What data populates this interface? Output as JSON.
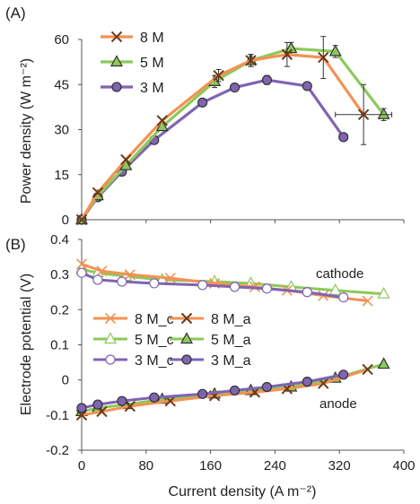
{
  "colors": {
    "8M": "#f39254",
    "5M": "#8cc95a",
    "3M": "#7f64b3",
    "marker8M": "#6b3a1b",
    "axis": "#555555",
    "text": "#222222"
  },
  "chart_data": [
    {
      "type": "line",
      "panel_label": "(A)",
      "ylabel": "Power density (W m⁻²)",
      "xlim": [
        0,
        400
      ],
      "ylim": [
        0,
        60
      ],
      "yticks": [
        "0",
        "15",
        "30",
        "45",
        "60"
      ],
      "legend": [
        "8 M",
        "5 M",
        "3 M"
      ],
      "legend_position": "top-left",
      "grid": false,
      "series": [
        {
          "name": "8 M",
          "marker": "x",
          "x": [
            0,
            20,
            55,
            100,
            170,
            210,
            255,
            300,
            350
          ],
          "y": [
            0,
            9,
            20,
            33,
            48,
            53,
            55,
            54,
            35
          ],
          "err_y": [
            0,
            0,
            0,
            0,
            2,
            2,
            4,
            7,
            10
          ],
          "err_x": [
            0,
            0,
            0,
            0,
            0,
            0,
            0,
            0,
            35
          ]
        },
        {
          "name": "5 M",
          "marker": "triangle",
          "x": [
            0,
            20,
            55,
            100,
            165,
            210,
            260,
            315,
            375
          ],
          "y": [
            0,
            8,
            18,
            31,
            46,
            53,
            57,
            56,
            35
          ],
          "err_y": [
            0,
            0,
            0,
            0,
            2,
            2,
            2,
            2,
            2
          ],
          "err_x": [
            0,
            0,
            0,
            0,
            0,
            0,
            0,
            0,
            0
          ]
        },
        {
          "name": "3 M",
          "marker": "circle",
          "x": [
            0,
            20,
            50,
            90,
            150,
            190,
            230,
            280,
            325
          ],
          "y": [
            0,
            7.5,
            16,
            26.5,
            39,
            44,
            46.5,
            44.5,
            27.5
          ],
          "err_y": [
            0,
            0,
            0,
            0,
            0,
            0,
            1.5,
            1,
            1
          ],
          "err_x": [
            0,
            0,
            0,
            0,
            0,
            0,
            0,
            0,
            5
          ]
        }
      ]
    },
    {
      "type": "line",
      "panel_label": "(B)",
      "xlabel": "Current density (A m⁻²)",
      "ylabel": "Electrode potential (V)",
      "xlim": [
        0,
        400
      ],
      "ylim": [
        -0.2,
        0.4
      ],
      "xticks": [
        "0",
        "80",
        "160",
        "240",
        "320",
        "400"
      ],
      "yticks": [
        "-0.2",
        "-0.1",
        "0",
        "0.1",
        "0.2",
        "0.3",
        "0.4"
      ],
      "annotations": [
        "cathode",
        "anode"
      ],
      "legend": [
        "8 M_c",
        "8 M_a",
        "5 M_c",
        "5 M_a",
        "3 M_c",
        "3 M_a"
      ],
      "legend_position": "center-left",
      "grid": false,
      "series": [
        {
          "name": "8 M_c",
          "marker": "x-light",
          "x": [
            0,
            25,
            60,
            110,
            165,
            215,
            255,
            300,
            355
          ],
          "y": [
            0.33,
            0.31,
            0.3,
            0.29,
            0.275,
            0.265,
            0.255,
            0.24,
            0.225
          ]
        },
        {
          "name": "8 M_a",
          "marker": "x-dark",
          "x": [
            0,
            25,
            60,
            110,
            165,
            215,
            255,
            300,
            355
          ],
          "y": [
            -0.1,
            -0.09,
            -0.075,
            -0.06,
            -0.045,
            -0.035,
            -0.025,
            -0.01,
            0.03
          ]
        },
        {
          "name": "5 M_c",
          "marker": "triangle-open",
          "x": [
            0,
            20,
            55,
            100,
            165,
            210,
            260,
            315,
            375
          ],
          "y": [
            0.315,
            0.305,
            0.295,
            0.285,
            0.28,
            0.275,
            0.265,
            0.255,
            0.245
          ]
        },
        {
          "name": "5 M_a",
          "marker": "triangle",
          "x": [
            0,
            20,
            55,
            100,
            165,
            210,
            260,
            315,
            375
          ],
          "y": [
            -0.09,
            -0.08,
            -0.07,
            -0.055,
            -0.04,
            -0.03,
            -0.02,
            0.005,
            0.045
          ]
        },
        {
          "name": "3 M_c",
          "marker": "circle-open",
          "x": [
            0,
            20,
            50,
            90,
            150,
            190,
            230,
            280,
            325
          ],
          "y": [
            0.305,
            0.285,
            0.28,
            0.275,
            0.27,
            0.265,
            0.26,
            0.25,
            0.235
          ]
        },
        {
          "name": "3 M_a",
          "marker": "circle",
          "x": [
            0,
            20,
            50,
            90,
            150,
            190,
            230,
            280,
            325
          ],
          "y": [
            -0.08,
            -0.07,
            -0.06,
            -0.05,
            -0.04,
            -0.03,
            -0.02,
            -0.005,
            0.015
          ]
        }
      ]
    }
  ]
}
